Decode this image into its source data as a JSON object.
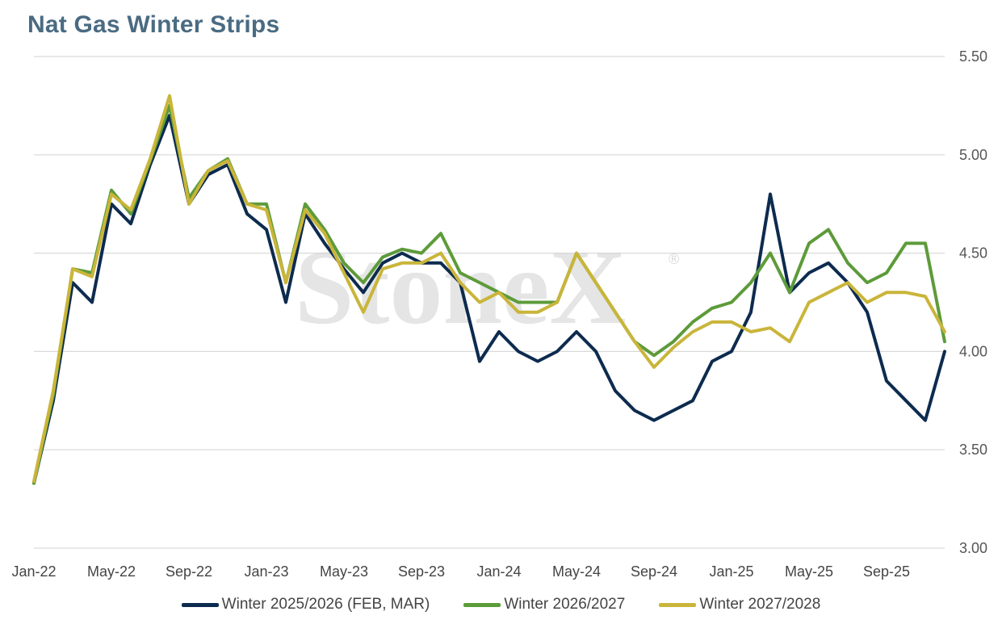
{
  "chart_data": {
    "type": "line",
    "title": "Nat Gas Winter Strips",
    "watermark": "StoneX",
    "ylim": [
      3.0,
      5.5
    ],
    "y_ticks": [
      "3.00",
      "3.50",
      "4.00",
      "4.50",
      "5.00",
      "5.50"
    ],
    "x_ticks": [
      "Jan-22",
      "May-22",
      "Sep-22",
      "Jan-23",
      "May-23",
      "Sep-23",
      "Jan-24",
      "May-24",
      "Sep-24",
      "Jan-25",
      "May-25",
      "Sep-25"
    ],
    "xlim": [
      "2022-01",
      "2025-12"
    ],
    "grid": true,
    "legend_position": "bottom",
    "x": [
      "2022-01",
      "2022-02",
      "2022-03",
      "2022-04",
      "2022-05",
      "2022-06",
      "2022-07",
      "2022-08",
      "2022-09",
      "2022-10",
      "2022-11",
      "2022-12",
      "2023-01",
      "2023-02",
      "2023-03",
      "2023-04",
      "2023-05",
      "2023-06",
      "2023-07",
      "2023-08",
      "2023-09",
      "2023-10",
      "2023-11",
      "2023-12",
      "2024-01",
      "2024-02",
      "2024-03",
      "2024-04",
      "2024-05",
      "2024-06",
      "2024-07",
      "2024-08",
      "2024-09",
      "2024-10",
      "2024-11",
      "2024-12",
      "2025-01",
      "2025-02",
      "2025-03",
      "2025-04",
      "2025-05",
      "2025-06",
      "2025-07",
      "2025-08",
      "2025-09",
      "2025-10",
      "2025-11",
      "2025-12"
    ],
    "series": [
      {
        "name": "Winter 2025/2026 (FEB, MAR)",
        "color": "#0d2b4f",
        "values": [
          3.33,
          3.75,
          4.35,
          4.25,
          4.75,
          4.65,
          4.95,
          5.2,
          4.75,
          4.9,
          4.95,
          4.7,
          4.62,
          4.25,
          4.7,
          4.55,
          4.42,
          4.3,
          4.45,
          4.5,
          4.45,
          4.45,
          4.35,
          3.95,
          4.1,
          4.0,
          3.95,
          4.0,
          4.1,
          4.0,
          3.8,
          3.7,
          3.65,
          3.7,
          3.75,
          3.95,
          4.0,
          4.2,
          4.8,
          4.3,
          4.4,
          4.45,
          4.35,
          4.2,
          3.85,
          3.75,
          3.65,
          4.0
        ]
      },
      {
        "name": "Winter 2026/2027",
        "color": "#5d9b3a",
        "values": [
          3.33,
          3.78,
          4.42,
          4.4,
          4.82,
          4.7,
          4.97,
          5.25,
          4.78,
          4.92,
          4.98,
          4.75,
          4.75,
          4.35,
          4.75,
          4.62,
          4.45,
          4.35,
          4.48,
          4.52,
          4.5,
          4.6,
          4.4,
          4.35,
          4.3,
          4.25,
          4.25,
          4.25,
          4.5,
          4.35,
          4.2,
          4.05,
          3.98,
          4.05,
          4.15,
          4.22,
          4.25,
          4.35,
          4.5,
          4.3,
          4.55,
          4.62,
          4.45,
          4.35,
          4.4,
          4.55,
          4.55,
          4.05
        ]
      },
      {
        "name": "Winter 2027/2028",
        "color": "#c9b53a",
        "values": [
          3.34,
          3.8,
          4.42,
          4.38,
          4.8,
          4.72,
          4.98,
          5.3,
          4.75,
          4.92,
          4.97,
          4.75,
          4.72,
          4.35,
          4.72,
          4.6,
          4.4,
          4.2,
          4.42,
          4.45,
          4.45,
          4.5,
          4.35,
          4.25,
          4.3,
          4.2,
          4.2,
          4.25,
          4.5,
          4.35,
          4.2,
          4.05,
          3.92,
          4.02,
          4.1,
          4.15,
          4.15,
          4.1,
          4.12,
          4.05,
          4.25,
          4.3,
          4.35,
          4.25,
          4.3,
          4.3,
          4.28,
          4.1
        ]
      }
    ]
  }
}
